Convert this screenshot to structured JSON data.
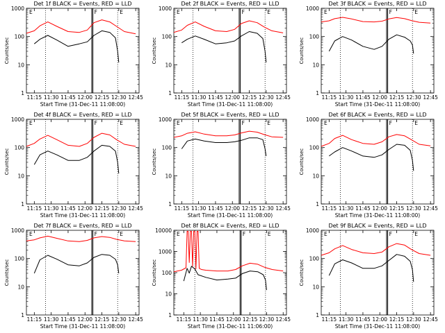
{
  "figure": {
    "colors": {
      "events": "#000000",
      "lld": "#ff0000",
      "frame": "#000000",
      "background": "#ffffff"
    }
  },
  "chart_data": [
    {
      "type": "line",
      "title": "Det 1f BLACK = Events, RED = LLD",
      "xlabel": "Start Time (31-Dec-11 11:08:00)",
      "ylabel": "Counts/sec",
      "yscale": "log",
      "ylim": [
        1,
        1000
      ],
      "xlim": [
        "11:08",
        "12:48"
      ],
      "x_ticks": [
        "11:15",
        "11:30",
        "11:45",
        "12:00",
        "12:15",
        "12:30",
        "12:45"
      ],
      "y_ticks": [
        "1",
        "10",
        "100",
        "1000"
      ],
      "annotations": [
        "E",
        "F",
        "E"
      ],
      "markers": {
        "dotted_lines": [
          "11:25",
          "12:29"
        ],
        "solid_lines": [
          "12:06",
          "12:07"
        ]
      },
      "series": [
        {
          "name": "LLD",
          "color": "#ff0000",
          "x": [
            "11:08",
            "11:15",
            "11:20",
            "11:27",
            "11:35",
            "11:45",
            "11:55",
            "12:02",
            "12:08",
            "12:15",
            "12:22",
            "12:28",
            "12:35",
            "12:45"
          ],
          "values": [
            130,
            160,
            240,
            330,
            230,
            150,
            140,
            170,
            310,
            390,
            330,
            230,
            150,
            125
          ]
        },
        {
          "name": "Events",
          "color": "#000000",
          "x": [
            "11:15",
            "11:20",
            "11:27",
            "11:35",
            "11:45",
            "11:55",
            "12:02",
            "12:08",
            "12:15",
            "12:22",
            "12:27",
            "12:29",
            "12:30"
          ],
          "values": [
            55,
            80,
            110,
            75,
            45,
            55,
            65,
            110,
            160,
            140,
            90,
            30,
            12
          ]
        }
      ]
    },
    {
      "type": "line",
      "title": "Det 2f BLACK = Events, RED = LLD",
      "xlabel": "Start Time (31-Dec-11 11:08:00)",
      "ylabel": "Counts/sec",
      "yscale": "log",
      "ylim": [
        1,
        1000
      ],
      "xlim": [
        "11:08",
        "12:48"
      ],
      "x_ticks": [
        "11:15",
        "11:30",
        "11:45",
        "12:00",
        "12:15",
        "12:30",
        "12:45"
      ],
      "y_ticks": [
        "1",
        "10",
        "100",
        "1000"
      ],
      "annotations": [
        "E",
        "F",
        "E"
      ],
      "markers": {
        "dotted_lines": [
          "11:25",
          "12:29"
        ],
        "solid_lines": [
          "12:06",
          "12:07"
        ]
      },
      "series": [
        {
          "name": "LLD",
          "color": "#ff0000",
          "x": [
            "11:08",
            "11:15",
            "11:20",
            "11:27",
            "11:35",
            "11:45",
            "11:55",
            "12:02",
            "12:08",
            "12:15",
            "12:22",
            "12:28",
            "12:35",
            "12:45"
          ],
          "values": [
            140,
            170,
            250,
            330,
            230,
            160,
            150,
            180,
            290,
            360,
            310,
            220,
            160,
            135
          ]
        },
        {
          "name": "Events",
          "color": "#000000",
          "x": [
            "11:15",
            "11:20",
            "11:27",
            "11:35",
            "11:45",
            "11:55",
            "12:02",
            "12:08",
            "12:15",
            "12:22",
            "12:27",
            "12:29",
            "12:30"
          ],
          "values": [
            60,
            80,
            105,
            80,
            55,
            60,
            70,
            105,
            150,
            130,
            85,
            30,
            12
          ]
        }
      ]
    },
    {
      "type": "line",
      "title": "Det 3f BLACK = Events, RED = LLD",
      "xlabel": "Start Time (31-Dec-11 11:08:00)",
      "ylabel": "Counts/sec",
      "yscale": "log",
      "ylim": [
        1,
        1000
      ],
      "xlim": [
        "11:08",
        "12:48"
      ],
      "x_ticks": [
        "11:15",
        "11:30",
        "11:45",
        "12:00",
        "12:15",
        "12:30",
        "12:45"
      ],
      "y_ticks": [
        "1",
        "10",
        "100",
        "1000"
      ],
      "annotations": [
        "E",
        "F",
        "E"
      ],
      "markers": {
        "dotted_lines": [
          "11:25",
          "12:29"
        ],
        "solid_lines": [
          "12:06",
          "12:07"
        ]
      },
      "series": [
        {
          "name": "LLD",
          "color": "#ff0000",
          "x": [
            "11:08",
            "11:15",
            "11:20",
            "11:27",
            "11:35",
            "11:45",
            "11:55",
            "12:02",
            "12:08",
            "12:15",
            "12:22",
            "12:28",
            "12:35",
            "12:45"
          ],
          "values": [
            330,
            360,
            430,
            480,
            420,
            340,
            330,
            350,
            420,
            470,
            430,
            370,
            320,
            300
          ]
        },
        {
          "name": "Events",
          "color": "#000000",
          "x": [
            "11:15",
            "11:20",
            "11:27",
            "11:35",
            "11:45",
            "11:55",
            "12:02",
            "12:08",
            "12:15",
            "12:22",
            "12:27",
            "12:29",
            "12:30"
          ],
          "values": [
            30,
            70,
            100,
            75,
            45,
            35,
            45,
            80,
            115,
            95,
            70,
            50,
            25
          ]
        }
      ]
    },
    {
      "type": "line",
      "title": "Det 4f BLACK = Events, RED = LLD",
      "xlabel": "Start Time (31-Dec-11 11:08:00)",
      "ylabel": "Counts/sec",
      "yscale": "log",
      "ylim": [
        1,
        1000
      ],
      "xlim": [
        "11:08",
        "12:48"
      ],
      "x_ticks": [
        "11:15",
        "11:30",
        "11:45",
        "12:00",
        "12:15",
        "12:30",
        "12:45"
      ],
      "y_ticks": [
        "1",
        "10",
        "100",
        "1000"
      ],
      "annotations": [
        "E",
        "F",
        "E"
      ],
      "markers": {
        "dotted_lines": [
          "11:25",
          "12:29"
        ],
        "solid_lines": [
          "12:06",
          "12:07"
        ]
      },
      "series": [
        {
          "name": "LLD",
          "color": "#ff0000",
          "x": [
            "11:08",
            "11:15",
            "11:20",
            "11:27",
            "11:35",
            "11:45",
            "11:55",
            "12:02",
            "12:08",
            "12:15",
            "12:22",
            "12:28",
            "12:35",
            "12:45"
          ],
          "values": [
            110,
            140,
            200,
            270,
            190,
            120,
            110,
            140,
            230,
            320,
            280,
            190,
            130,
            110
          ]
        },
        {
          "name": "Events",
          "color": "#000000",
          "x": [
            "11:15",
            "11:20",
            "11:27",
            "11:35",
            "11:45",
            "11:55",
            "12:02",
            "12:08",
            "12:15",
            "12:22",
            "12:27",
            "12:29",
            "12:30"
          ],
          "values": [
            25,
            55,
            75,
            55,
            35,
            35,
            45,
            75,
            120,
            110,
            75,
            30,
            12
          ]
        }
      ]
    },
    {
      "type": "line",
      "title": "Det 5f BLACK = Events, RED = LLD",
      "xlabel": "Start Time (31-Dec-11 11:08:00)",
      "ylabel": "Counts/sec",
      "yscale": "log",
      "ylim": [
        1,
        1000
      ],
      "xlim": [
        "11:08",
        "12:48"
      ],
      "x_ticks": [
        "11:15",
        "11:30",
        "11:45",
        "12:00",
        "12:15",
        "12:30",
        "12:45"
      ],
      "y_ticks": [
        "1",
        "10",
        "100",
        "1000"
      ],
      "annotations": [
        "E",
        "F",
        "E"
      ],
      "markers": {
        "dotted_lines": [
          "11:25",
          "12:29"
        ],
        "solid_lines": [
          "12:06",
          "12:07"
        ]
      },
      "series": [
        {
          "name": "LLD",
          "color": "#ff0000",
          "x": [
            "11:08",
            "11:15",
            "11:20",
            "11:27",
            "11:35",
            "11:45",
            "11:55",
            "12:02",
            "12:08",
            "12:15",
            "12:22",
            "12:28",
            "12:35",
            "12:45"
          ],
          "values": [
            230,
            260,
            320,
            360,
            300,
            260,
            260,
            280,
            330,
            380,
            350,
            290,
            240,
            230
          ]
        },
        {
          "name": "Events",
          "color": "#000000",
          "x": [
            "11:15",
            "11:20",
            "11:27",
            "11:35",
            "11:45",
            "11:55",
            "12:02",
            "12:08",
            "12:15",
            "12:22",
            "12:27",
            "12:29",
            "12:30"
          ],
          "values": [
            90,
            170,
            200,
            170,
            150,
            150,
            160,
            180,
            220,
            220,
            190,
            90,
            50
          ]
        }
      ]
    },
    {
      "type": "line",
      "title": "Det 6f BLACK = Events, RED = LLD",
      "xlabel": "Start Time (31-Dec-11 11:08:00)",
      "ylabel": "Counts/sec",
      "yscale": "log",
      "ylim": [
        1,
        1000
      ],
      "xlim": [
        "11:08",
        "12:48"
      ],
      "x_ticks": [
        "11:15",
        "11:30",
        "11:45",
        "12:00",
        "12:15",
        "12:30",
        "12:45"
      ],
      "y_ticks": [
        "1",
        "10",
        "100",
        "1000"
      ],
      "annotations": [
        "E",
        "F",
        "E"
      ],
      "markers": {
        "dotted_lines": [
          "11:25",
          "12:29"
        ],
        "solid_lines": [
          "12:06",
          "12:07"
        ]
      },
      "series": [
        {
          "name": "LLD",
          "color": "#ff0000",
          "x": [
            "11:08",
            "11:15",
            "11:20",
            "11:27",
            "11:35",
            "11:45",
            "11:55",
            "12:02",
            "12:08",
            "12:15",
            "12:22",
            "12:28",
            "12:35",
            "12:45"
          ],
          "values": [
            110,
            140,
            210,
            270,
            190,
            140,
            130,
            160,
            240,
            290,
            260,
            190,
            130,
            115
          ]
        },
        {
          "name": "Events",
          "color": "#000000",
          "x": [
            "11:15",
            "11:20",
            "11:27",
            "11:35",
            "11:45",
            "11:55",
            "12:02",
            "12:08",
            "12:15",
            "12:22",
            "12:27",
            "12:29",
            "12:30"
          ],
          "values": [
            50,
            70,
            100,
            75,
            50,
            45,
            55,
            85,
            130,
            120,
            80,
            35,
            15
          ]
        }
      ]
    },
    {
      "type": "line",
      "title": "Det 7f BLACK = Events, RED = LLD",
      "xlabel": "Start Time (31-Dec-11 11:08:00)",
      "ylabel": "Counts/sec",
      "yscale": "log",
      "ylim": [
        1,
        1000
      ],
      "xlim": [
        "11:08",
        "12:48"
      ],
      "x_ticks": [
        "11:15",
        "11:30",
        "11:45",
        "12:00",
        "12:15",
        "12:30",
        "12:45"
      ],
      "y_ticks": [
        "1",
        "10",
        "100",
        "1000"
      ],
      "annotations": [
        "E",
        "F",
        "E"
      ],
      "markers": {
        "dotted_lines": [
          "11:25",
          "12:29"
        ],
        "solid_lines": [
          "12:06",
          "12:07"
        ]
      },
      "series": [
        {
          "name": "LLD",
          "color": "#ff0000",
          "x": [
            "11:08",
            "11:15",
            "11:20",
            "11:27",
            "11:35",
            "11:45",
            "11:55",
            "12:02",
            "12:08",
            "12:15",
            "12:22",
            "12:28",
            "12:35",
            "12:45"
          ],
          "values": [
            420,
            460,
            540,
            620,
            520,
            420,
            400,
            440,
            540,
            600,
            560,
            480,
            420,
            400
          ]
        },
        {
          "name": "Events",
          "color": "#000000",
          "x": [
            "11:15",
            "11:20",
            "11:27",
            "11:35",
            "11:45",
            "11:55",
            "12:02",
            "12:08",
            "12:15",
            "12:22",
            "12:27",
            "12:29",
            "12:30"
          ],
          "values": [
            30,
            90,
            130,
            95,
            60,
            55,
            70,
            110,
            140,
            130,
            95,
            60,
            30
          ]
        }
      ]
    },
    {
      "type": "line",
      "title": "Det 8f BLACK = Events, RED = LLD",
      "xlabel": "Start Time (31-Dec-11 11:06:00)",
      "ylabel": "Counts/sec",
      "yscale": "log",
      "ylim": [
        1,
        10000
      ],
      "xlim": [
        "11:06",
        "12:48"
      ],
      "x_ticks": [
        "11:15",
        "11:30",
        "11:45",
        "12:00",
        "12:15",
        "12:30",
        "12:45"
      ],
      "y_ticks": [
        "1",
        "10",
        "100",
        "1000",
        "10000"
      ],
      "annotations": [
        "E",
        "F",
        "E"
      ],
      "markers": {
        "dotted_lines": [
          "11:25",
          "12:29"
        ],
        "solid_lines": [
          "12:06",
          "12:07"
        ]
      },
      "series": [
        {
          "name": "LLD",
          "color": "#ff0000",
          "x": [
            "11:06",
            "11:13",
            "11:17",
            "11:18",
            "11:19",
            "11:20",
            "11:21",
            "11:22",
            "11:23",
            "11:24",
            "11:25",
            "11:26",
            "11:27",
            "11:28",
            "11:29",
            "11:30",
            "11:31",
            "11:35",
            "11:45",
            "11:55",
            "12:02",
            "12:08",
            "12:15",
            "12:22",
            "12:28",
            "12:35",
            "12:45"
          ],
          "values": [
            110,
            130,
            170,
            9000,
            9000,
            300,
            9000,
            9000,
            200,
            9000,
            9000,
            150,
            9000,
            9000,
            160,
            150,
            140,
            130,
            120,
            120,
            140,
            210,
            280,
            250,
            180,
            140,
            120
          ]
        },
        {
          "name": "Events",
          "color": "#000000",
          "x": [
            "11:15",
            "11:18",
            "11:20",
            "11:22",
            "11:25",
            "11:28",
            "11:35",
            "11:45",
            "11:55",
            "12:02",
            "12:08",
            "12:15",
            "12:22",
            "12:27",
            "12:29",
            "12:30"
          ],
          "values": [
            40,
            160,
            95,
            200,
            150,
            80,
            60,
            45,
            50,
            55,
            90,
            120,
            110,
            80,
            45,
            15
          ]
        }
      ]
    },
    {
      "type": "line",
      "title": "Det 9f BLACK = Events, RED = LLD",
      "xlabel": "Start Time (31-Dec-11 11:08:00)",
      "ylabel": "Counts/sec",
      "yscale": "log",
      "ylim": [
        1,
        1000
      ],
      "xlim": [
        "11:08",
        "12:48"
      ],
      "x_ticks": [
        "11:15",
        "11:30",
        "11:45",
        "12:00",
        "12:15",
        "12:30",
        "12:45"
      ],
      "y_ticks": [
        "1",
        "10",
        "100",
        "1000"
      ],
      "annotations": [
        "E",
        "F",
        "E"
      ],
      "markers": {
        "dotted_lines": [
          "11:25",
          "12:29"
        ],
        "solid_lines": [
          "12:06",
          "12:07"
        ]
      },
      "series": [
        {
          "name": "LLD",
          "color": "#ff0000",
          "x": [
            "11:08",
            "11:15",
            "11:20",
            "11:27",
            "11:35",
            "11:45",
            "11:55",
            "12:02",
            "12:08",
            "12:15",
            "12:22",
            "12:28",
            "12:35",
            "12:45"
          ],
          "values": [
            130,
            160,
            220,
            290,
            210,
            160,
            150,
            170,
            260,
            340,
            300,
            210,
            150,
            130
          ]
        },
        {
          "name": "Events",
          "color": "#000000",
          "x": [
            "11:15",
            "11:20",
            "11:27",
            "11:35",
            "11:45",
            "11:55",
            "12:02",
            "12:08",
            "12:15",
            "12:22",
            "12:27",
            "12:29",
            "12:30"
          ],
          "values": [
            25,
            65,
            90,
            70,
            45,
            45,
            55,
            85,
            140,
            120,
            80,
            40,
            15
          ]
        }
      ]
    }
  ]
}
